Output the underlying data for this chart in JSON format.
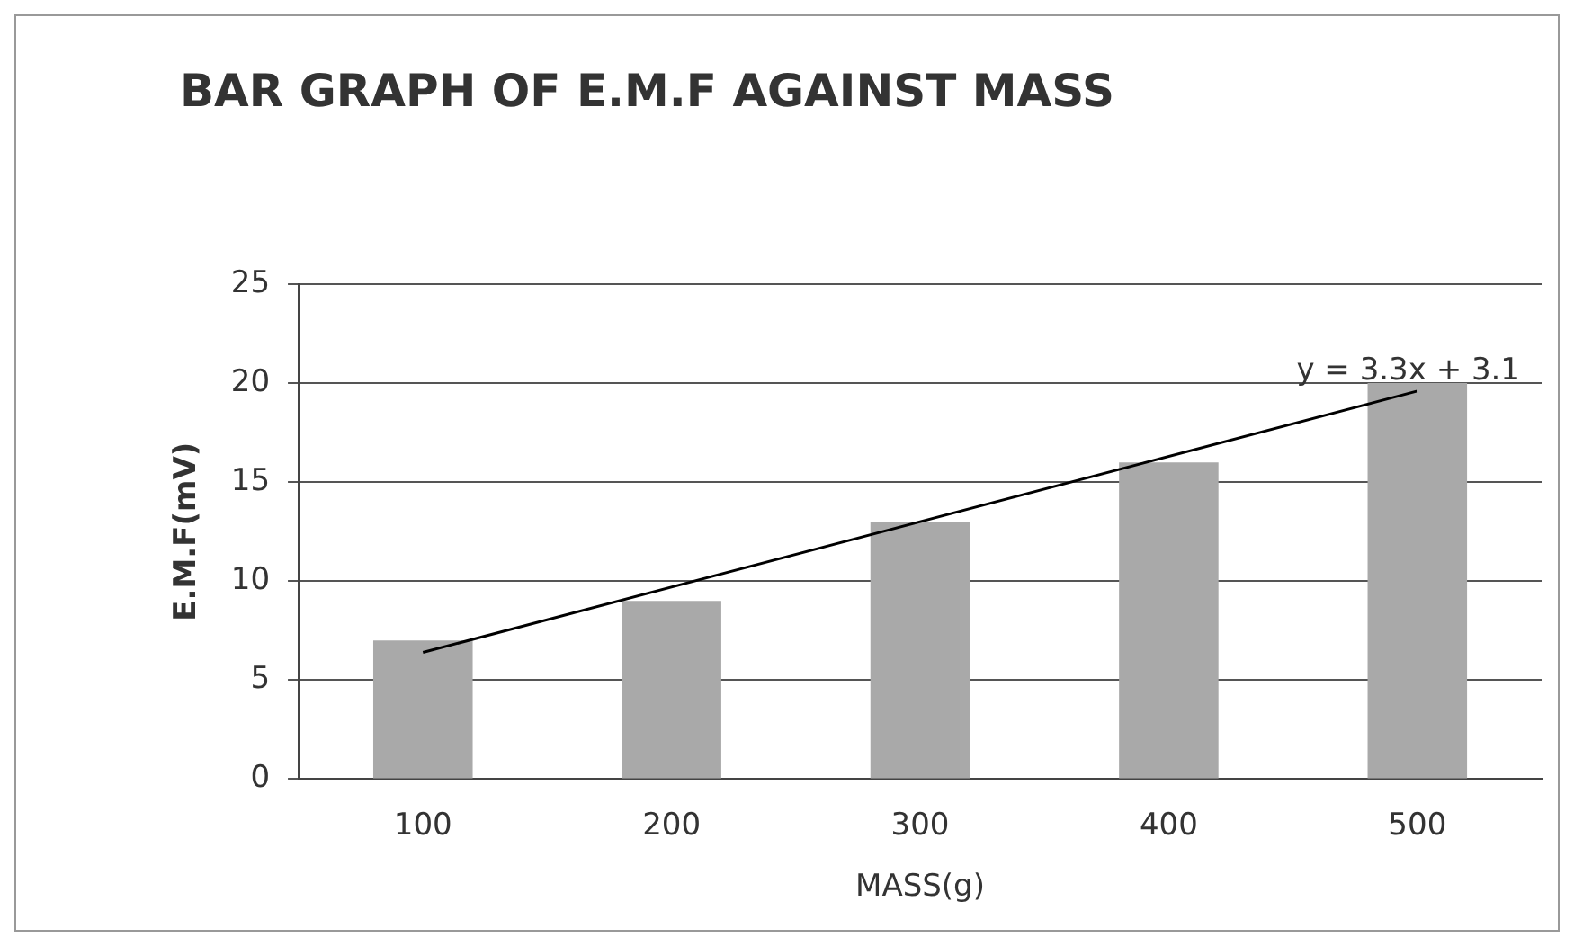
{
  "chart_data": {
    "type": "bar",
    "title": "BAR GRAPH OF E.M.F AGAINST MASS",
    "xlabel": "MASS(g)",
    "ylabel": "E.M.F(mV)",
    "categories": [
      "100",
      "200",
      "300",
      "400",
      "500"
    ],
    "series": [
      {
        "color": "#a9a9a9",
        "values": [
          7,
          9,
          13,
          16,
          20
        ]
      },
      {
        "type": "line",
        "color": "#000000",
        "x": [
          "100",
          "500"
        ],
        "values": [
          6.4,
          19.6
        ]
      }
    ],
    "ylim": [
      0,
      25
    ],
    "yticks": [
      0,
      5,
      10,
      15,
      20,
      25
    ],
    "grid": "y",
    "legend": false,
    "annotations": [
      "y = 3.3x + 3.1"
    ]
  }
}
